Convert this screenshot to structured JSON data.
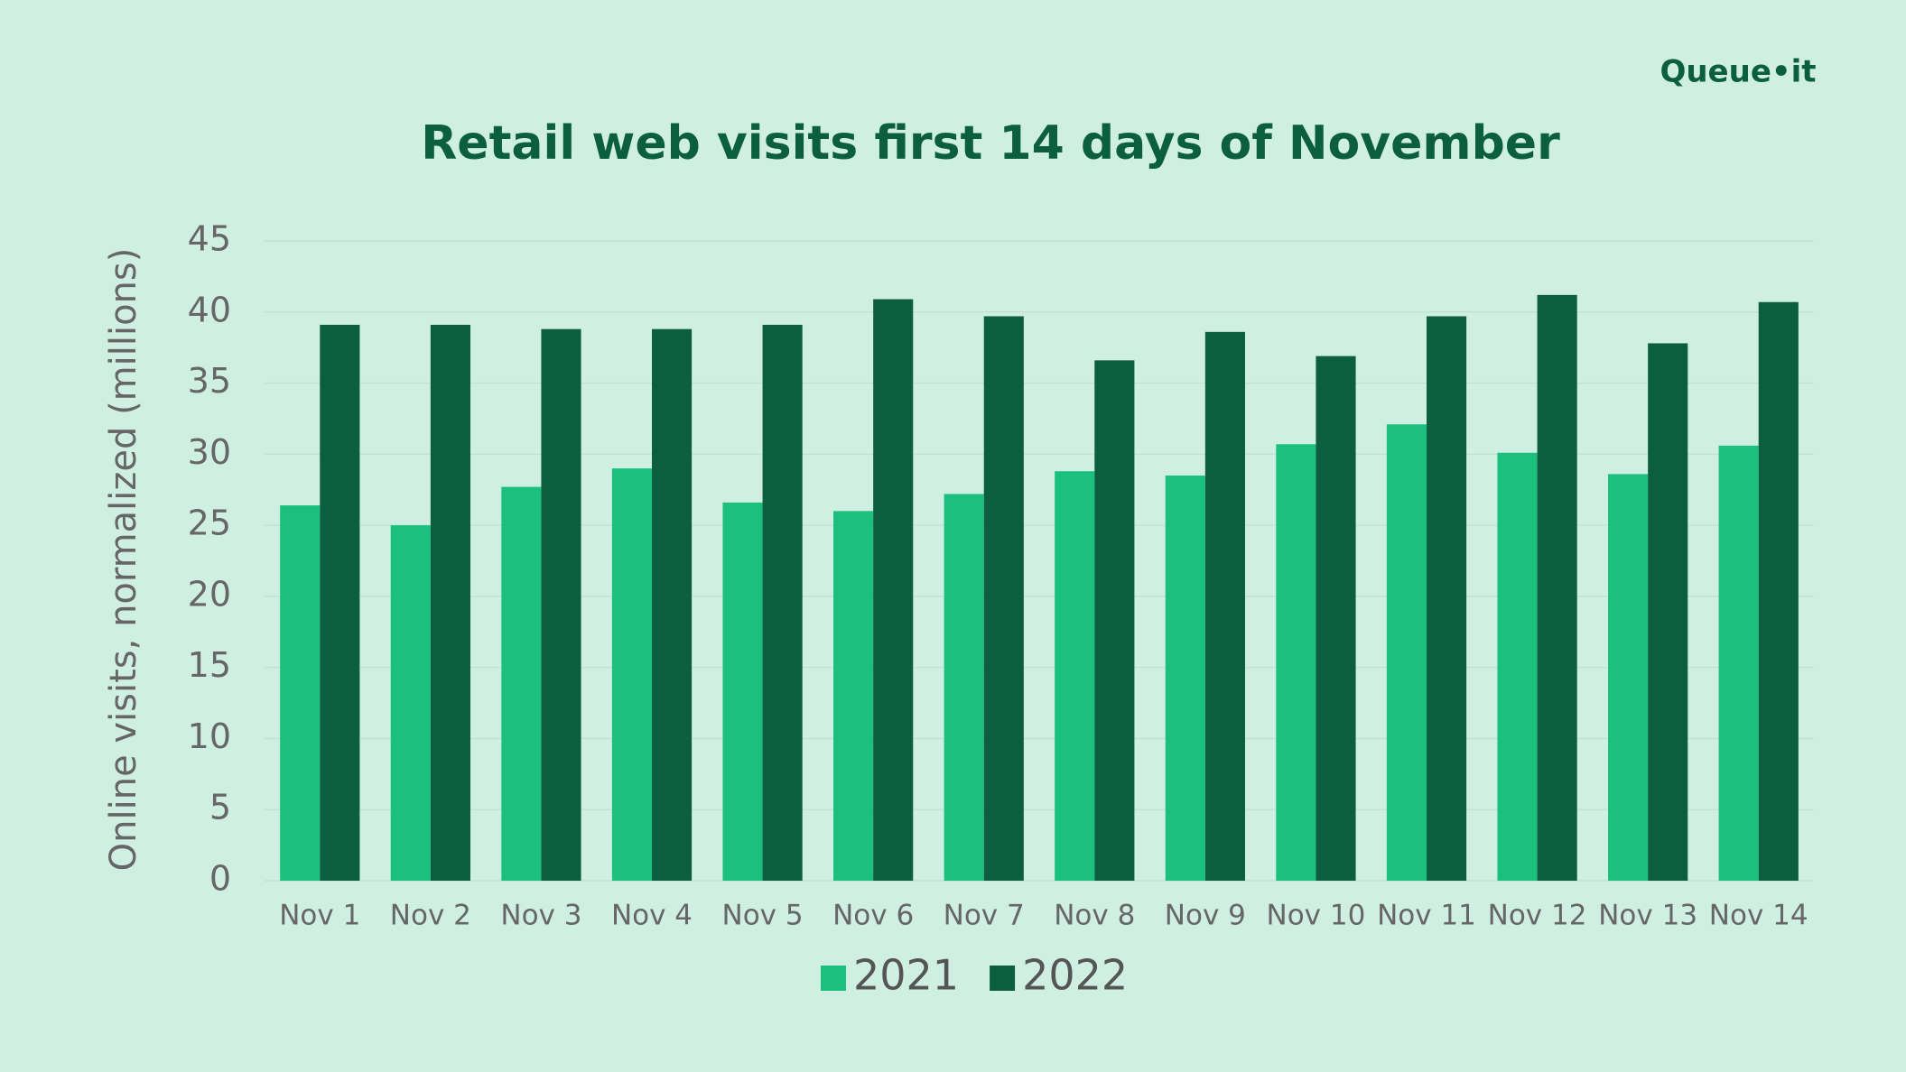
{
  "chart_data": {
    "type": "bar",
    "title": "Retail web visits first 14 days of November",
    "logo": "Queue•it",
    "y_label": "Online visits, normalized (millions)",
    "categories": [
      "Nov 1",
      "Nov 2",
      "Nov 3",
      "Nov 4",
      "Nov 5",
      "Nov 6",
      "Nov 7",
      "Nov 8",
      "Nov 9",
      "Nov 10",
      "Nov 11",
      "Nov 12",
      "Nov 13",
      "Nov 14"
    ],
    "series": [
      {
        "name": "2021",
        "color": "#1bc07f",
        "values": [
          26.4,
          25.0,
          27.7,
          29.0,
          26.6,
          26.0,
          27.2,
          28.8,
          28.5,
          30.7,
          32.1,
          30.1,
          28.6,
          30.6
        ]
      },
      {
        "name": "2022",
        "color": "#0c5e40",
        "values": [
          39.1,
          39.1,
          38.8,
          38.8,
          39.1,
          40.9,
          39.7,
          36.6,
          38.6,
          36.9,
          39.7,
          41.2,
          37.8,
          40.7
        ]
      }
    ],
    "ylim": [
      0,
      45
    ],
    "yticks": [
      0,
      5,
      10,
      15,
      20,
      25,
      30,
      35,
      40,
      45
    ],
    "grid": true,
    "legend": "bottom"
  }
}
